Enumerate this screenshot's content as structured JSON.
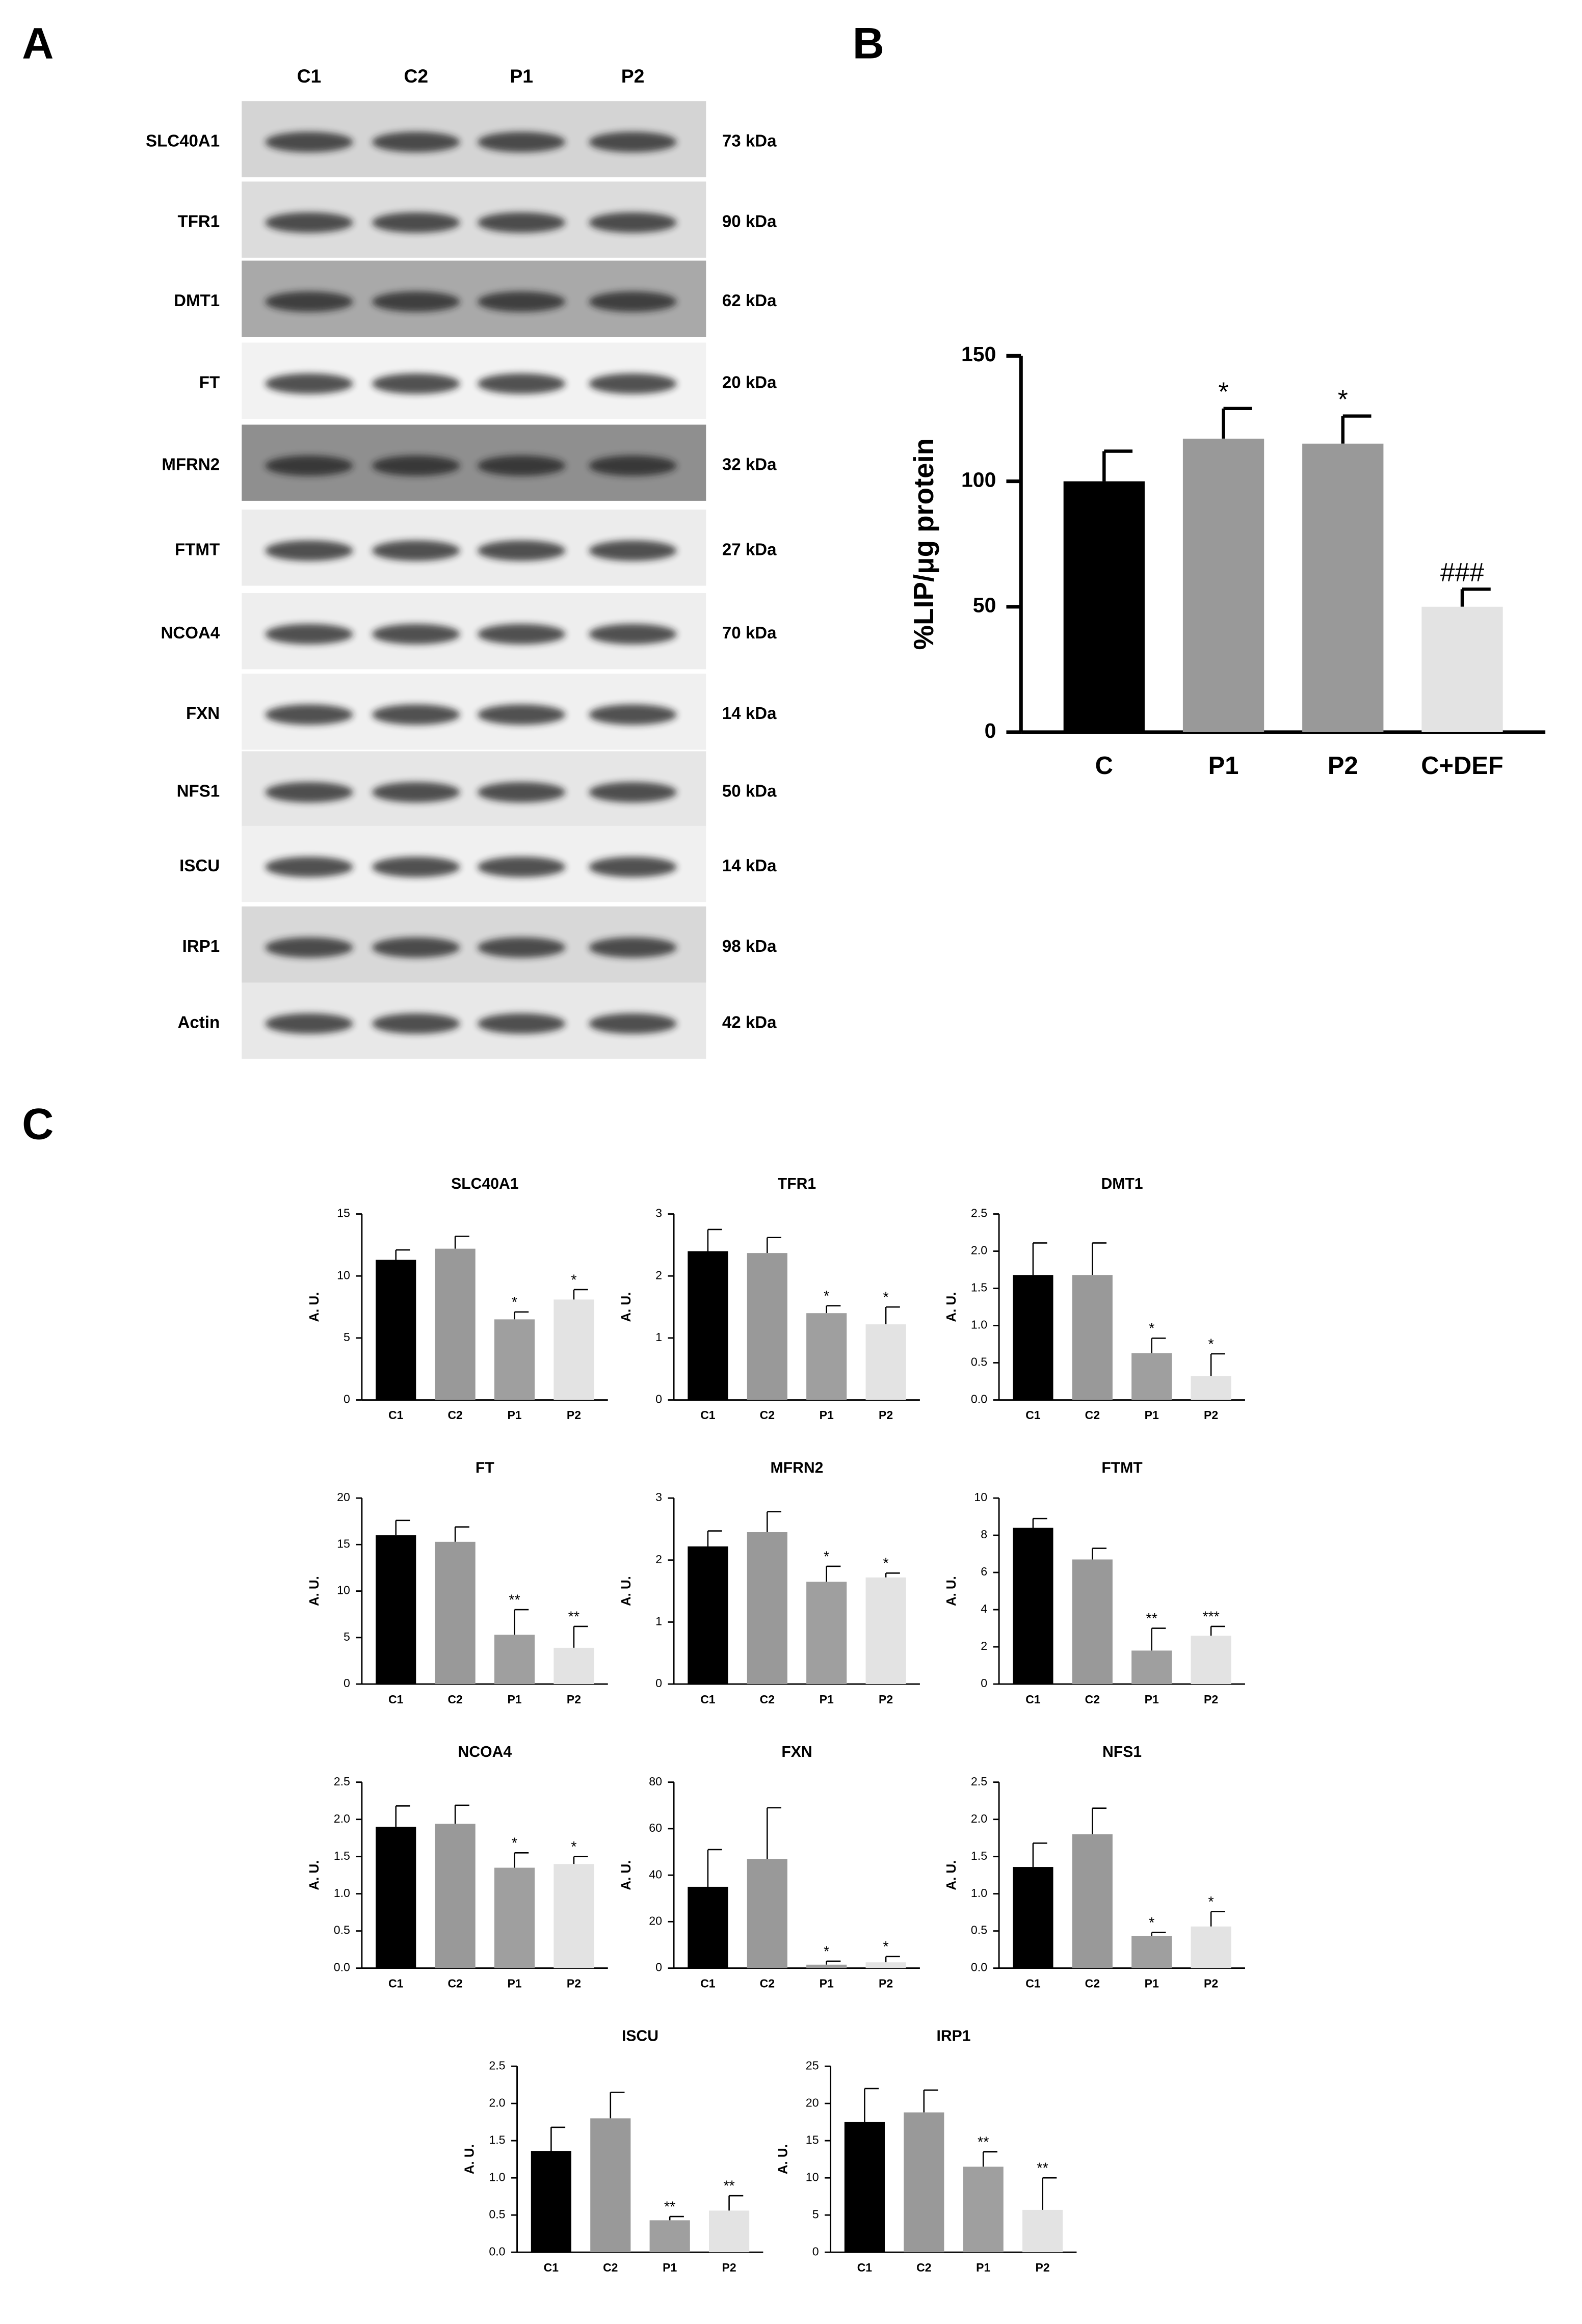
{
  "panels": [
    "A",
    "B",
    "C"
  ],
  "blot": {
    "lanes": [
      "C1",
      "C2",
      "P1",
      "P2"
    ],
    "proteins": [
      "SLC40A1",
      "TFR1",
      "DMT1",
      "FT",
      "MFRN2",
      "FTMT",
      "NCOA4",
      "FXN",
      "NFS1",
      "ISCU",
      "IRP1",
      "Actin"
    ],
    "sizes": [
      "73 kDa",
      "90 kDa",
      "62 kDa",
      "20 kDa",
      "32 kDa",
      "27 kDa",
      "70 kDa",
      "14 kDa",
      "50 kDa",
      "14 kDa",
      "98 kDa",
      "42 kDa"
    ]
  },
  "chart_data": [
    {
      "type": "bar",
      "ylabel": "%LIP/μg protein",
      "categories": [
        "C",
        "P1",
        "P2",
        "C+DEF"
      ],
      "values": [
        100,
        117,
        115,
        50
      ],
      "errors": [
        12,
        12,
        11,
        7
      ],
      "annotations": [
        null,
        "*",
        "*",
        "###"
      ],
      "colors": [
        "#000000",
        "#999999",
        "#999999",
        "#e3e3e3"
      ],
      "ylim": [
        0,
        150
      ],
      "yticks": [
        0,
        50,
        100,
        150
      ]
    },
    {
      "type": "bar",
      "title": "SLC40A1",
      "ylabel": "A. U.",
      "categories": [
        "C1",
        "C2",
        "P1",
        "P2"
      ],
      "values": [
        11.3,
        12.2,
        6.5,
        8.1
      ],
      "errors": [
        0.8,
        1.0,
        0.6,
        0.8
      ],
      "annotations": [
        null,
        null,
        "*",
        "*"
      ],
      "colors": [
        "#000000",
        "#999999",
        "#9f9f9f",
        "#e3e3e3"
      ],
      "ylim": [
        0,
        15
      ],
      "yticks": [
        0,
        5,
        10,
        15
      ]
    },
    {
      "type": "bar",
      "title": "TFR1",
      "ylabel": "A. U.",
      "categories": [
        "C1",
        "C2",
        "P1",
        "P2"
      ],
      "values": [
        2.4,
        2.37,
        1.4,
        1.22
      ],
      "errors": [
        0.35,
        0.25,
        0.12,
        0.28
      ],
      "annotations": [
        null,
        null,
        "*",
        "*"
      ],
      "colors": [
        "#000000",
        "#999999",
        "#9f9f9f",
        "#e3e3e3"
      ],
      "ylim": [
        0,
        3
      ],
      "yticks": [
        0,
        1,
        2,
        3
      ]
    },
    {
      "type": "bar",
      "title": "DMT1",
      "ylabel": "A. U.",
      "categories": [
        "C1",
        "C2",
        "P1",
        "P2"
      ],
      "values": [
        1.68,
        1.68,
        0.63,
        0.32
      ],
      "errors": [
        0.43,
        0.43,
        0.2,
        0.3
      ],
      "annotations": [
        null,
        null,
        "*",
        "*"
      ],
      "colors": [
        "#000000",
        "#999999",
        "#9f9f9f",
        "#e3e3e3"
      ],
      "ylim": [
        0,
        2.5
      ],
      "yticks": [
        {
          "value": 0,
          "label": "0.0"
        },
        0.5,
        {
          "value": 1,
          "label": "1.0"
        },
        1.5,
        {
          "value": 2,
          "label": "2.0"
        },
        2.5
      ]
    },
    {
      "type": "bar",
      "title": "FT",
      "ylabel": "A. U.",
      "categories": [
        "C1",
        "C2",
        "P1",
        "P2"
      ],
      "values": [
        16,
        15.3,
        5.3,
        3.9
      ],
      "errors": [
        1.6,
        1.6,
        2.7,
        2.3
      ],
      "annotations": [
        null,
        null,
        "**",
        "**"
      ],
      "colors": [
        "#000000",
        "#999999",
        "#9f9f9f",
        "#e3e3e3"
      ],
      "ylim": [
        0,
        20
      ],
      "yticks": [
        0,
        5,
        10,
        15,
        20
      ]
    },
    {
      "type": "bar",
      "title": "MFRN2",
      "ylabel": "A. U.",
      "categories": [
        "C1",
        "C2",
        "P1",
        "P2"
      ],
      "values": [
        2.22,
        2.45,
        1.65,
        1.72
      ],
      "errors": [
        0.25,
        0.33,
        0.25,
        0.07
      ],
      "annotations": [
        null,
        null,
        "*",
        "*"
      ],
      "colors": [
        "#000000",
        "#999999",
        "#9f9f9f",
        "#e3e3e3"
      ],
      "ylim": [
        0,
        3
      ],
      "yticks": [
        0,
        1,
        2,
        3
      ]
    },
    {
      "type": "bar",
      "title": "FTMT",
      "ylabel": "A. U.",
      "categories": [
        "C1",
        "C2",
        "P1",
        "P2"
      ],
      "values": [
        8.4,
        6.7,
        1.8,
        2.6
      ],
      "errors": [
        0.5,
        0.6,
        1.2,
        0.5
      ],
      "annotations": [
        null,
        null,
        "**",
        "***"
      ],
      "colors": [
        "#000000",
        "#999999",
        "#9f9f9f",
        "#e3e3e3"
      ],
      "ylim": [
        0,
        10
      ],
      "yticks": [
        0,
        2,
        4,
        6,
        8,
        10
      ]
    },
    {
      "type": "bar",
      "title": "NCOA4",
      "ylabel": "A. U.",
      "categories": [
        "C1",
        "C2",
        "P1",
        "P2"
      ],
      "values": [
        1.9,
        1.94,
        1.35,
        1.4
      ],
      "errors": [
        0.28,
        0.25,
        0.2,
        0.1
      ],
      "annotations": [
        null,
        null,
        "*",
        "*"
      ],
      "colors": [
        "#000000",
        "#999999",
        "#9f9f9f",
        "#e3e3e3"
      ],
      "ylim": [
        0,
        2.5
      ],
      "yticks": [
        {
          "value": 0,
          "label": "0.0"
        },
        0.5,
        {
          "value": 1,
          "label": "1.0"
        },
        1.5,
        {
          "value": 2,
          "label": "2.0"
        },
        2.5
      ]
    },
    {
      "type": "bar",
      "title": "FXN",
      "ylabel": "A. U.",
      "categories": [
        "C1",
        "C2",
        "P1",
        "P2"
      ],
      "values": [
        35,
        47,
        1.5,
        2.5
      ],
      "errors": [
        16,
        22,
        1.5,
        2.5
      ],
      "annotations": [
        null,
        null,
        "*",
        "*"
      ],
      "colors": [
        "#000000",
        "#999999",
        "#9f9f9f",
        "#e3e3e3"
      ],
      "ylim": [
        0,
        80
      ],
      "yticks": [
        0,
        20,
        40,
        60,
        80
      ]
    },
    {
      "type": "bar",
      "title": "NFS1",
      "ylabel": "A. U.",
      "categories": [
        "C1",
        "C2",
        "P1",
        "P2"
      ],
      "values": [
        1.36,
        1.8,
        0.43,
        0.56
      ],
      "errors": [
        0.32,
        0.35,
        0.05,
        0.2
      ],
      "annotations": [
        null,
        null,
        "*",
        "*"
      ],
      "colors": [
        "#000000",
        "#999999",
        "#9f9f9f",
        "#e3e3e3"
      ],
      "ylim": [
        0,
        2.5
      ],
      "yticks": [
        {
          "value": 0,
          "label": "0.0"
        },
        0.5,
        {
          "value": 1,
          "label": "1.0"
        },
        1.5,
        {
          "value": 2,
          "label": "2.0"
        },
        2.5
      ]
    },
    {
      "type": "bar",
      "title": "ISCU",
      "ylabel": "A. U.",
      "categories": [
        "C1",
        "C2",
        "P1",
        "P2"
      ],
      "values": [
        1.36,
        1.8,
        0.43,
        0.56
      ],
      "errors": [
        0.32,
        0.35,
        0.05,
        0.2
      ],
      "annotations": [
        null,
        null,
        "**",
        "**"
      ],
      "colors": [
        "#000000",
        "#999999",
        "#9f9f9f",
        "#e3e3e3"
      ],
      "ylim": [
        0,
        2.5
      ],
      "yticks": [
        {
          "value": 0,
          "label": "0.0"
        },
        0.5,
        {
          "value": 1,
          "label": "1.0"
        },
        1.5,
        {
          "value": 2,
          "label": "2.0"
        },
        2.5
      ]
    },
    {
      "type": "bar",
      "title": "IRP1",
      "ylabel": "A. U.",
      "categories": [
        "C1",
        "C2",
        "P1",
        "P2"
      ],
      "values": [
        17.5,
        18.8,
        11.5,
        5.7
      ],
      "errors": [
        4.5,
        3,
        2,
        4.3
      ],
      "annotations": [
        null,
        null,
        "**",
        "**"
      ],
      "colors": [
        "#000000",
        "#999999",
        "#9f9f9f",
        "#e3e3e3"
      ],
      "ylim": [
        0,
        25
      ],
      "yticks": [
        0,
        5,
        10,
        15,
        20,
        25
      ]
    }
  ]
}
